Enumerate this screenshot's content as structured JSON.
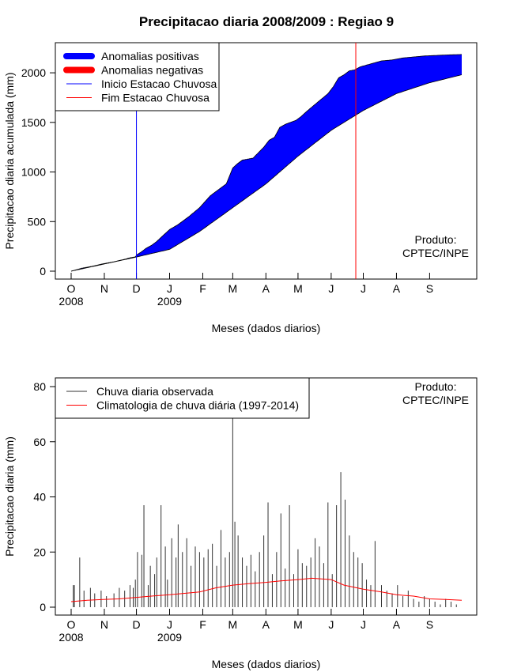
{
  "title": "Precipitacao diaria 2008/2009 : Regiao 9",
  "colors": {
    "positive": "#0000ff",
    "negative": "#ff0000",
    "onset": "#0000ff",
    "end": "#ff0000",
    "observed": "#333333",
    "climatology": "#ff0000"
  },
  "chart_data": [
    {
      "type": "area",
      "title": "Precipitacao diaria 2008/2009 : Regiao 9",
      "xlabel": "Meses (dados diarios)",
      "ylabel": "Precipitacao diaria acumulada (mm)",
      "x_unit": "days since 1 Oct 2008",
      "xlim": [
        0,
        365
      ],
      "ylim": [
        0,
        2200
      ],
      "yticks": [
        0,
        500,
        1000,
        1500,
        2000
      ],
      "month_ticks": [
        {
          "day": 0,
          "label": "O"
        },
        {
          "day": 31,
          "label": "N"
        },
        {
          "day": 61,
          "label": "D"
        },
        {
          "day": 92,
          "label": "J"
        },
        {
          "day": 123,
          "label": "F"
        },
        {
          "day": 151,
          "label": "M"
        },
        {
          "day": 182,
          "label": "A"
        },
        {
          "day": 212,
          "label": "M"
        },
        {
          "day": 243,
          "label": "J"
        },
        {
          "day": 273,
          "label": "J"
        },
        {
          "day": 304,
          "label": "A"
        },
        {
          "day": 335,
          "label": "S"
        }
      ],
      "year_labels": [
        {
          "day": 0,
          "label": "2008"
        },
        {
          "day": 92,
          "label": "2009"
        }
      ],
      "series": [
        {
          "name": "observed_accumulated",
          "days": [
            0,
            10,
            20,
            30,
            40,
            50,
            55,
            60,
            62,
            65,
            70,
            75,
            80,
            85,
            92,
            100,
            110,
            120,
            130,
            140,
            145,
            151,
            155,
            160,
            170,
            180,
            185,
            190,
            195,
            200,
            205,
            210,
            215,
            220,
            230,
            240,
            245,
            250,
            255,
            260,
            265,
            270,
            280,
            290,
            300,
            305,
            310,
            320,
            330,
            340,
            350,
            365
          ],
          "values": [
            0,
            30,
            50,
            75,
            95,
            120,
            135,
            145,
            170,
            190,
            230,
            260,
            300,
            350,
            420,
            470,
            550,
            640,
            760,
            840,
            880,
            1040,
            1080,
            1120,
            1140,
            1250,
            1320,
            1350,
            1450,
            1480,
            1500,
            1520,
            1560,
            1610,
            1700,
            1790,
            1860,
            1950,
            1980,
            2020,
            2030,
            2060,
            2090,
            2120,
            2130,
            2140,
            2150,
            2160,
            2170,
            2175,
            2180,
            2185
          ]
        },
        {
          "name": "climatology_accumulated",
          "days": [
            0,
            30,
            60,
            92,
            120,
            151,
            182,
            212,
            243,
            273,
            304,
            335,
            365
          ],
          "values": [
            0,
            70,
            140,
            220,
            400,
            640,
            880,
            1160,
            1420,
            1620,
            1790,
            1900,
            1980
          ]
        }
      ],
      "legend": {
        "position": "top-left",
        "entries": [
          {
            "label": "Anomalias positivas",
            "color": "#0000ff",
            "style": "thick"
          },
          {
            "label": "Anomalias negativas",
            "color": "#ff0000",
            "style": "thick"
          },
          {
            "label": "Inicio Estacao Chuvosa",
            "color": "#0000ff",
            "style": "thin"
          },
          {
            "label": "Fim Estacao Chuvosa",
            "color": "#ff0000",
            "style": "thin"
          }
        ]
      },
      "annotations": {
        "onset_day": 61,
        "end_day": 266,
        "product_lines": [
          "Produto:",
          "CPTEC/INPE"
        ],
        "product_position": "bottom-right"
      }
    },
    {
      "type": "line",
      "title": "",
      "xlabel": "Meses (dados diarios)",
      "ylabel": "Precipitacao diaria (mm)",
      "x_unit": "days since 1 Oct 2008",
      "xlim": [
        0,
        365
      ],
      "ylim": [
        0,
        80
      ],
      "yticks": [
        0,
        20,
        40,
        60,
        80
      ],
      "month_ticks": [
        {
          "day": 0,
          "label": "O"
        },
        {
          "day": 31,
          "label": "N"
        },
        {
          "day": 61,
          "label": "D"
        },
        {
          "day": 92,
          "label": "J"
        },
        {
          "day": 123,
          "label": "F"
        },
        {
          "day": 151,
          "label": "M"
        },
        {
          "day": 182,
          "label": "A"
        },
        {
          "day": 212,
          "label": "M"
        },
        {
          "day": 243,
          "label": "J"
        },
        {
          "day": 273,
          "label": "J"
        },
        {
          "day": 304,
          "label": "A"
        },
        {
          "day": 335,
          "label": "S"
        }
      ],
      "year_labels": [
        {
          "day": 0,
          "label": "2008"
        },
        {
          "day": 92,
          "label": "2009"
        }
      ],
      "series": [
        {
          "name": "Chuva diaria observada",
          "type": "spikes",
          "days": [
            2,
            3,
            8,
            12,
            18,
            22,
            28,
            33,
            40,
            45,
            50,
            55,
            58,
            60,
            62,
            66,
            68,
            72,
            74,
            78,
            80,
            84,
            88,
            90,
            94,
            98,
            100,
            104,
            108,
            112,
            116,
            120,
            124,
            128,
            132,
            136,
            140,
            144,
            148,
            151,
            153,
            156,
            160,
            164,
            168,
            172,
            176,
            180,
            184,
            188,
            192,
            196,
            200,
            204,
            208,
            212,
            216,
            220,
            224,
            228,
            232,
            236,
            240,
            244,
            248,
            252,
            256,
            260,
            264,
            268,
            272,
            276,
            280,
            284,
            290,
            295,
            300,
            305,
            310,
            315,
            320,
            325,
            330,
            335,
            340,
            345,
            350,
            355,
            360
          ],
          "values": [
            8,
            8,
            18,
            6,
            7,
            5,
            6,
            4,
            5,
            7,
            6,
            8,
            7,
            10,
            20,
            19,
            37,
            8,
            15,
            12,
            18,
            37,
            22,
            10,
            25,
            18,
            30,
            20,
            25,
            15,
            22,
            20,
            18,
            21,
            23,
            15,
            28,
            18,
            20,
            70,
            31,
            26,
            18,
            15,
            19,
            13,
            20,
            26,
            38,
            12,
            20,
            34,
            14,
            37,
            12,
            21,
            16,
            15,
            18,
            25,
            22,
            16,
            38,
            12,
            37,
            49,
            39,
            26,
            20,
            18,
            16,
            10,
            8,
            24,
            8,
            6,
            5,
            8,
            4,
            6,
            3,
            2,
            4,
            3,
            2,
            1,
            3,
            2,
            1
          ]
        },
        {
          "name": "Climatologia de chuva diária (1997-2014)",
          "type": "line",
          "days": [
            0,
            15,
            30,
            45,
            60,
            75,
            92,
            105,
            120,
            135,
            151,
            165,
            182,
            195,
            212,
            225,
            243,
            255,
            273,
            290,
            304,
            320,
            335,
            350,
            365
          ],
          "values": [
            2,
            2.5,
            2.8,
            3,
            3.5,
            4,
            4.5,
            5,
            5.5,
            7,
            8,
            8.5,
            9,
            9.5,
            10,
            10.5,
            10,
            8,
            6.5,
            5.5,
            4.5,
            4,
            3,
            2.8,
            2.5
          ]
        }
      ],
      "legend": {
        "position": "top-left",
        "entries": [
          {
            "label": "Chuva diaria observada",
            "color": "#333333",
            "style": "thin"
          },
          {
            "label": "Climatologia de chuva diária (1997-2014)",
            "color": "#ff0000",
            "style": "thin"
          }
        ]
      },
      "annotations": {
        "product_lines": [
          "Produto:",
          "CPTEC/INPE"
        ],
        "product_position": "top-right"
      }
    }
  ]
}
